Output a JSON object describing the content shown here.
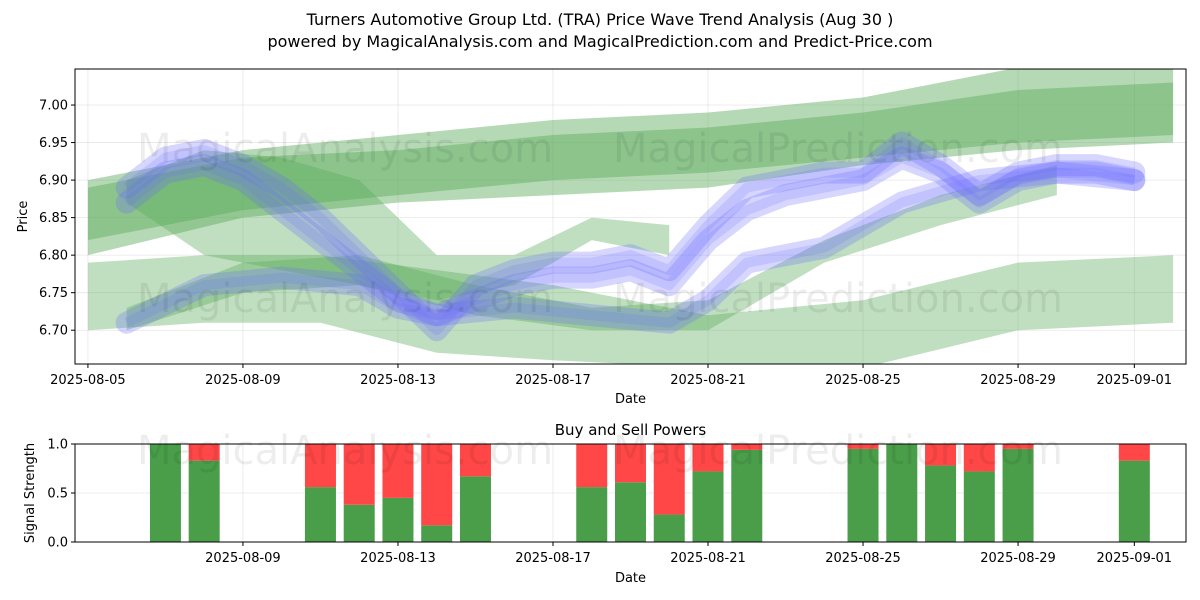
{
  "header": {
    "title": "Turners Automotive Group Ltd. (TRA) Price Wave Trend Analysis (Aug 30 )",
    "subtitle": "powered by MagicalAnalysis.com and MagicalPrediction.com and Predict-Price.com"
  },
  "watermarks": [
    "MagicalAnalysis.com",
    "MagicalPrediction.com"
  ],
  "colors": {
    "green": "#4a9e4a",
    "red": "#ff4747",
    "blue": "#6b6bff",
    "band_green": "#5aaa5a"
  },
  "chart_data": [
    {
      "type": "area",
      "title": "",
      "xlabel": "Date",
      "ylabel": "Price",
      "x_range": [
        "2025-08-04T16:00",
        "2025-09-02T08:00"
      ],
      "ylim": [
        6.655,
        7.048
      ],
      "x_ticks": [
        "2025-08-05",
        "2025-08-09",
        "2025-08-13",
        "2025-08-17",
        "2025-08-21",
        "2025-08-25",
        "2025-08-29",
        "2025-09-01"
      ],
      "y_ticks": [
        "6.70",
        "6.75",
        "6.80",
        "6.85",
        "6.90",
        "6.95",
        "7.00"
      ],
      "grid": true,
      "green_bands": [
        {
          "x": [
            "2025-08-05",
            "2025-08-09",
            "2025-08-13",
            "2025-08-17",
            "2025-08-21",
            "2025-08-25",
            "2025-08-29",
            "2025-09-02"
          ],
          "upper": [
            6.9,
            6.94,
            6.96,
            6.98,
            6.99,
            7.01,
            7.05,
            7.05
          ],
          "lower": [
            6.8,
            6.85,
            6.87,
            6.88,
            6.89,
            6.92,
            6.94,
            6.95
          ]
        },
        {
          "x": [
            "2025-08-05",
            "2025-08-09",
            "2025-08-13",
            "2025-08-17",
            "2025-08-21",
            "2025-08-25",
            "2025-08-29",
            "2025-09-02"
          ],
          "upper": [
            6.89,
            6.93,
            6.94,
            6.96,
            6.97,
            6.99,
            7.02,
            7.03
          ],
          "lower": [
            6.82,
            6.86,
            6.88,
            6.9,
            6.91,
            6.93,
            6.95,
            6.96
          ]
        },
        {
          "x": [
            "2025-08-05",
            "2025-08-08",
            "2025-08-11",
            "2025-08-14",
            "2025-08-17",
            "2025-08-21",
            "2025-08-25",
            "2025-08-29",
            "2025-09-02"
          ],
          "upper": [
            6.79,
            6.8,
            6.8,
            6.78,
            6.76,
            6.72,
            6.74,
            6.79,
            6.8
          ],
          "lower": [
            6.7,
            6.71,
            6.71,
            6.67,
            6.66,
            6.65,
            6.65,
            6.7,
            6.71
          ]
        },
        {
          "x": [
            "2025-08-06",
            "2025-08-09",
            "2025-08-12",
            "2025-08-15",
            "2025-08-18",
            "2025-08-21",
            "2025-08-24",
            "2025-08-27",
            "2025-08-30"
          ],
          "upper": [
            6.73,
            6.79,
            6.8,
            6.76,
            6.73,
            6.74,
            6.82,
            6.88,
            6.92
          ],
          "lower": [
            6.7,
            6.75,
            6.76,
            6.72,
            6.7,
            6.7,
            6.79,
            6.84,
            6.88
          ]
        },
        {
          "x": [
            "2025-08-06",
            "2025-08-08",
            "2025-08-10",
            "2025-08-12",
            "2025-08-14",
            "2025-08-16",
            "2025-08-18",
            "2025-08-20"
          ],
          "upper": [
            6.9,
            6.94,
            6.93,
            6.9,
            6.8,
            6.8,
            6.85,
            6.84
          ],
          "lower": [
            6.87,
            6.8,
            6.78,
            6.76,
            6.74,
            6.76,
            6.82,
            6.8
          ]
        }
      ],
      "blue_waves": [
        {
          "x": [
            "2025-08-06",
            "2025-08-07",
            "2025-08-08",
            "2025-08-09",
            "2025-08-10",
            "2025-08-11",
            "2025-08-12",
            "2025-08-13",
            "2025-08-14",
            "2025-08-15",
            "2025-08-16",
            "2025-08-17",
            "2025-08-18",
            "2025-08-19",
            "2025-08-20",
            "2025-08-21",
            "2025-08-22",
            "2025-08-23",
            "2025-08-24",
            "2025-08-25",
            "2025-08-26",
            "2025-08-27",
            "2025-08-28",
            "2025-08-29",
            "2025-08-30",
            "2025-08-31",
            "2025-09-01"
          ],
          "values": [
            6.89,
            6.93,
            6.94,
            6.92,
            6.89,
            6.85,
            6.8,
            6.75,
            6.7,
            6.76,
            6.78,
            6.79,
            6.79,
            6.8,
            6.78,
            6.84,
            6.89,
            6.9,
            6.91,
            6.91,
            6.95,
            6.92,
            6.88,
            6.91,
            6.92,
            6.92,
            6.91
          ]
        },
        {
          "x": [
            "2025-08-06",
            "2025-08-07",
            "2025-08-08",
            "2025-08-09",
            "2025-08-10",
            "2025-08-11",
            "2025-08-12",
            "2025-08-13",
            "2025-08-14",
            "2025-08-15",
            "2025-08-16",
            "2025-08-17",
            "2025-08-18",
            "2025-08-19",
            "2025-08-20",
            "2025-08-21",
            "2025-08-22",
            "2025-08-23",
            "2025-08-24",
            "2025-08-25",
            "2025-08-26",
            "2025-08-27",
            "2025-08-28",
            "2025-08-29",
            "2025-08-30",
            "2025-08-31",
            "2025-09-01"
          ],
          "values": [
            6.87,
            6.91,
            6.92,
            6.9,
            6.86,
            6.82,
            6.78,
            6.74,
            6.72,
            6.74,
            6.76,
            6.77,
            6.77,
            6.78,
            6.76,
            6.82,
            6.86,
            6.88,
            6.89,
            6.9,
            6.93,
            6.91,
            6.87,
            6.9,
            6.91,
            6.91,
            6.9
          ]
        },
        {
          "x": [
            "2025-08-06",
            "2025-08-08",
            "2025-08-10",
            "2025-08-12",
            "2025-08-13",
            "2025-08-14",
            "2025-08-16",
            "2025-08-18",
            "2025-08-20",
            "2025-08-21",
            "2025-08-22",
            "2025-08-24",
            "2025-08-26",
            "2025-08-28",
            "2025-08-30",
            "2025-09-01"
          ],
          "values": [
            6.71,
            6.76,
            6.77,
            6.76,
            6.73,
            6.72,
            6.73,
            6.72,
            6.71,
            6.74,
            6.79,
            6.81,
            6.87,
            6.9,
            6.91,
            6.9
          ]
        }
      ]
    },
    {
      "type": "bar",
      "title": "Buy and Sell Powers",
      "xlabel": "Date",
      "ylabel": "Signal Strength",
      "ylim": [
        0,
        1
      ],
      "x_range": [
        "2025-08-04T16:00",
        "2025-09-02T08:00"
      ],
      "x_ticks": [
        "2025-08-09",
        "2025-08-13",
        "2025-08-17",
        "2025-08-21",
        "2025-08-25",
        "2025-08-29",
        "2025-09-01"
      ],
      "y_ticks": [
        "0.0",
        "0.5",
        "1.0"
      ],
      "grid": true,
      "categories": [
        "2025-08-07",
        "2025-08-08",
        "2025-08-11",
        "2025-08-12",
        "2025-08-13",
        "2025-08-14",
        "2025-08-15",
        "2025-08-18",
        "2025-08-19",
        "2025-08-20",
        "2025-08-21",
        "2025-08-22",
        "2025-08-25",
        "2025-08-26",
        "2025-08-27",
        "2025-08-28",
        "2025-08-29",
        "2025-09-01"
      ],
      "series": [
        {
          "name": "Buy",
          "values": [
            1.0,
            0.83,
            0.56,
            0.38,
            0.45,
            0.17,
            0.67,
            0.56,
            0.61,
            0.28,
            0.72,
            0.94,
            0.95,
            1.0,
            0.78,
            0.72,
            0.95,
            0.83
          ]
        },
        {
          "name": "Sell",
          "values": [
            0.0,
            0.17,
            0.44,
            0.62,
            0.55,
            0.83,
            0.33,
            0.44,
            0.39,
            0.72,
            0.28,
            0.06,
            0.05,
            0.0,
            0.22,
            0.28,
            0.05,
            0.17
          ]
        }
      ]
    }
  ]
}
